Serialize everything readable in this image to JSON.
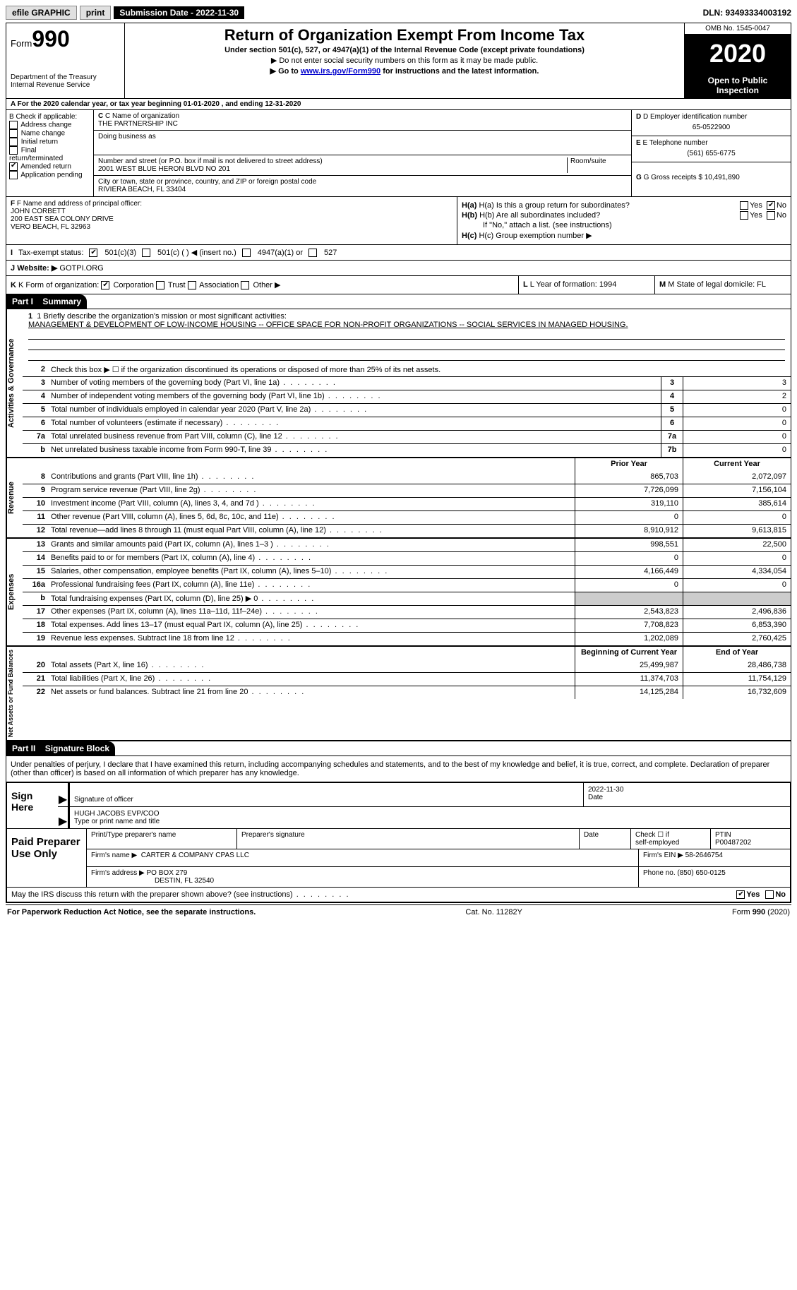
{
  "topbar": {
    "efile": "efile GRAPHIC",
    "print": "print",
    "sub_label": "Submission Date - 2022-11-30",
    "dln": "DLN: 93493334003192"
  },
  "header": {
    "form_word": "Form",
    "form_num": "990",
    "dept": "Department of the Treasury",
    "irs": "Internal Revenue Service",
    "title": "Return of Organization Exempt From Income Tax",
    "sub1": "Under section 501(c), 527, or 4947(a)(1) of the Internal Revenue Code (except private foundations)",
    "sub2": "▶ Do not enter social security numbers on this form as it may be made public.",
    "sub3a": "▶ Go to ",
    "sub3_link": "www.irs.gov/Form990",
    "sub3b": " for instructions and the latest information.",
    "omb": "OMB No. 1545-0047",
    "year": "2020",
    "open": "Open to Public Inspection"
  },
  "row_a": "A For the 2020 calendar year, or tax year beginning 01-01-2020    , and ending 12-31-2020",
  "col_b": {
    "hdr": "B Check if applicable:",
    "opts": [
      "Address change",
      "Name change",
      "Initial return",
      "Final return/terminated",
      "Amended return",
      "Application pending"
    ],
    "checked_idx": 4
  },
  "col_c": {
    "c_label": "C Name of organization",
    "c_val": "THE PARTNERSHIP INC",
    "dba_label": "Doing business as",
    "addr_label": "Number and street (or P.O. box if mail is not delivered to street address)",
    "room_label": "Room/suite",
    "addr_val": "2001 WEST BLUE HERON BLVD NO 201",
    "city_label": "City or town, state or province, country, and ZIP or foreign postal code",
    "city_val": "RIVIERA BEACH, FL  33404"
  },
  "col_d": {
    "d_label": "D Employer identification number",
    "d_val": "65-0522900",
    "e_label": "E Telephone number",
    "e_val": "(561) 655-6775",
    "g_label": "G Gross receipts $ 10,491,890"
  },
  "col_f": {
    "f_label": "F Name and address of principal officer:",
    "f_name": "JOHN CORBETT",
    "f_addr1": "200 EAST SEA COLONY DRIVE",
    "f_addr2": "VERO BEACH, FL  32963"
  },
  "col_h": {
    "ha_label": "H(a)  Is this a group return for subordinates?",
    "hb_label": "H(b)  Are all subordinates included?",
    "hb_note": "If \"No,\" attach a list. (see instructions)",
    "hc_label": "H(c)  Group exemption number ▶",
    "yes": "Yes",
    "no": "No"
  },
  "row_i": {
    "label": "Tax-exempt status:",
    "o1": "501(c)(3)",
    "o2": "501(c) (  ) ◀ (insert no.)",
    "o3": "4947(a)(1) or",
    "o4": "527"
  },
  "row_j": {
    "label": "Website: ▶",
    "val": "GOTPI.ORG"
  },
  "row_k": {
    "k_label": "K Form of organization:",
    "k1": "Corporation",
    "k2": "Trust",
    "k3": "Association",
    "k4": "Other ▶",
    "l": "L Year of formation: 1994",
    "m": "M State of legal domicile: FL"
  },
  "parts": {
    "p1": "Part I",
    "p1t": "Summary",
    "p2": "Part II",
    "p2t": "Signature Block"
  },
  "q1": {
    "label": "1  Briefly describe the organization's mission or most significant activities:",
    "text": "MANAGEMENT & DEVELOPMENT OF LOW-INCOME HOUSING -- OFFICE SPACE FOR NON-PROFIT ORGANIZATIONS -- SOCIAL SERVICES IN MANAGED HOUSING."
  },
  "gov_lines": [
    {
      "n": "2",
      "d": "Check this box ▶ ☐  if the organization discontinued its operations or disposed of more than 25% of its net assets."
    },
    {
      "n": "3",
      "d": "Number of voting members of the governing body (Part VI, line 1a)",
      "box": "3",
      "v": "3"
    },
    {
      "n": "4",
      "d": "Number of independent voting members of the governing body (Part VI, line 1b)",
      "box": "4",
      "v": "2"
    },
    {
      "n": "5",
      "d": "Total number of individuals employed in calendar year 2020 (Part V, line 2a)",
      "box": "5",
      "v": "0"
    },
    {
      "n": "6",
      "d": "Total number of volunteers (estimate if necessary)",
      "box": "6",
      "v": "0"
    },
    {
      "n": "7a",
      "d": "Total unrelated business revenue from Part VIII, column (C), line 12",
      "box": "7a",
      "v": "0"
    },
    {
      "n": "b",
      "d": "Net unrelated business taxable income from Form 990-T, line 39",
      "box": "7b",
      "v": "0"
    }
  ],
  "col_hdrs": {
    "py": "Prior Year",
    "cy": "Current Year",
    "boy": "Beginning of Current Year",
    "eoy": "End of Year"
  },
  "rev_lines": [
    {
      "n": "8",
      "d": "Contributions and grants (Part VIII, line 1h)",
      "py": "865,703",
      "cy": "2,072,097"
    },
    {
      "n": "9",
      "d": "Program service revenue (Part VIII, line 2g)",
      "py": "7,726,099",
      "cy": "7,156,104"
    },
    {
      "n": "10",
      "d": "Investment income (Part VIII, column (A), lines 3, 4, and 7d )",
      "py": "319,110",
      "cy": "385,614"
    },
    {
      "n": "11",
      "d": "Other revenue (Part VIII, column (A), lines 5, 6d, 8c, 10c, and 11e)",
      "py": "0",
      "cy": "0"
    },
    {
      "n": "12",
      "d": "Total revenue—add lines 8 through 11 (must equal Part VIII, column (A), line 12)",
      "py": "8,910,912",
      "cy": "9,613,815"
    }
  ],
  "exp_lines": [
    {
      "n": "13",
      "d": "Grants and similar amounts paid (Part IX, column (A), lines 1–3 )",
      "py": "998,551",
      "cy": "22,500"
    },
    {
      "n": "14",
      "d": "Benefits paid to or for members (Part IX, column (A), line 4)",
      "py": "0",
      "cy": "0"
    },
    {
      "n": "15",
      "d": "Salaries, other compensation, employee benefits (Part IX, column (A), lines 5–10)",
      "py": "4,166,449",
      "cy": "4,334,054"
    },
    {
      "n": "16a",
      "d": "Professional fundraising fees (Part IX, column (A), line 11e)",
      "py": "0",
      "cy": "0"
    },
    {
      "n": "b",
      "d": "Total fundraising expenses (Part IX, column (D), line 25) ▶ 0",
      "py": "",
      "cy": "",
      "shade": true
    },
    {
      "n": "17",
      "d": "Other expenses (Part IX, column (A), lines 11a–11d, 11f–24e)",
      "py": "2,543,823",
      "cy": "2,496,836"
    },
    {
      "n": "18",
      "d": "Total expenses. Add lines 13–17 (must equal Part IX, column (A), line 25)",
      "py": "7,708,823",
      "cy": "6,853,390"
    },
    {
      "n": "19",
      "d": "Revenue less expenses. Subtract line 18 from line 12",
      "py": "1,202,089",
      "cy": "2,760,425"
    }
  ],
  "na_lines": [
    {
      "n": "20",
      "d": "Total assets (Part X, line 16)",
      "py": "25,499,987",
      "cy": "28,486,738"
    },
    {
      "n": "21",
      "d": "Total liabilities (Part X, line 26)",
      "py": "11,374,703",
      "cy": "11,754,129"
    },
    {
      "n": "22",
      "d": "Net assets or fund balances. Subtract line 21 from line 20",
      "py": "14,125,284",
      "cy": "16,732,609"
    }
  ],
  "vlabels": {
    "gov": "Activities & Governance",
    "rev": "Revenue",
    "exp": "Expenses",
    "na": "Net Assets or Fund Balances"
  },
  "sig_decl": "Under penalties of perjury, I declare that I have examined this return, including accompanying schedules and statements, and to the best of my knowledge and belief, it is true, correct, and complete. Declaration of preparer (other than officer) is based on all information of which preparer has any knowledge.",
  "sign": {
    "here": "Sign Here",
    "sig_label": "Signature of officer",
    "date_label": "Date",
    "date_val": "2022-11-30",
    "name": "HUGH JACOBS  EVP/COO",
    "name_label": "Type or print name and title"
  },
  "prep": {
    "title": "Paid Preparer Use Only",
    "h1": "Print/Type preparer's name",
    "h2": "Preparer's signature",
    "h3": "Date",
    "h4a": "Check ☐ if",
    "h4b": "self-employed",
    "h5": "PTIN",
    "ptin": "P00487202",
    "fn_label": "Firm's name   ▶",
    "fn": "CARTER & COMPANY CPAS LLC",
    "fe_label": "Firm's EIN ▶",
    "fe": "58-2646754",
    "fa_label": "Firm's address ▶",
    "fa1": "PO BOX 279",
    "fa2": "DESTIN, FL  32540",
    "ph_label": "Phone no.",
    "ph": "(850) 650-0125"
  },
  "discuss": "May the IRS discuss this return with the preparer shown above? (see instructions)",
  "footer": {
    "l": "For Paperwork Reduction Act Notice, see the separate instructions.",
    "m": "Cat. No. 11282Y",
    "r": "Form 990 (2020)"
  }
}
